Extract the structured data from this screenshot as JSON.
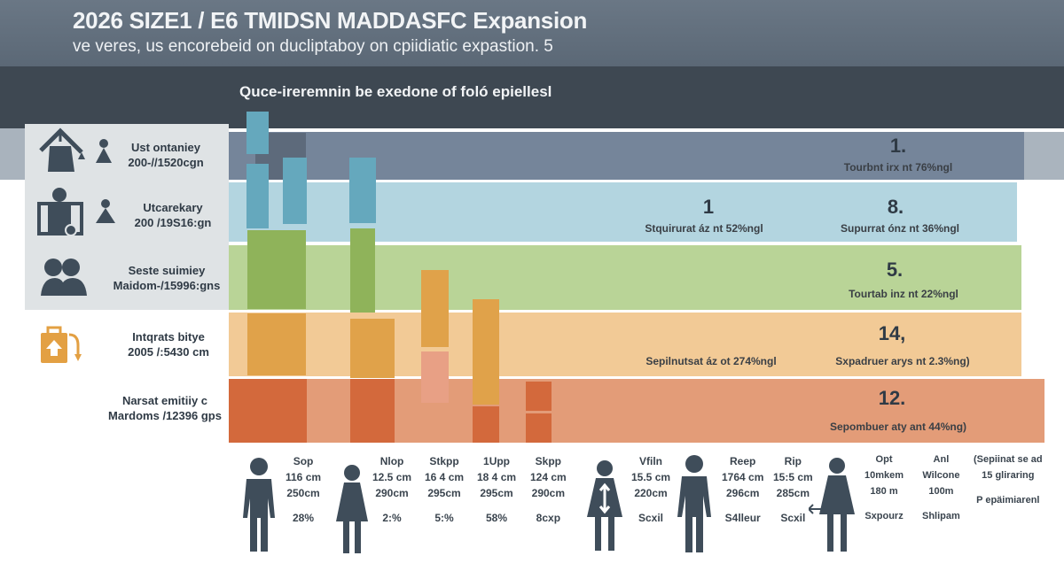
{
  "header": {
    "title": "2026 SIZE1 / E6 TMIDSN MADDASFC Expansion",
    "subtitle": "ve veres, us encorebeid on ducliptaboy on cpiidiatic expastion. 5"
  },
  "section_title": "Quce-ireremnin be exedone of foló epiellesl",
  "colors": {
    "header": "#5f6c7a",
    "band": "#3e4852",
    "row1": "#75859a",
    "row2": "#b3d5e0",
    "row3": "#b9d497",
    "row4": "#f2ca96",
    "row5": "#e39c78",
    "teal": "#65a8bd",
    "green": "#8fb35a",
    "orange": "#e0a24a",
    "red": "#d3693c",
    "icon": "#3f4d5a"
  },
  "categories": [
    {
      "icon": "building-crane-icon",
      "name": "Ust ontaniey",
      "detail": "200-//1520cgn"
    },
    {
      "icon": "businessman-icon",
      "name": "Utcarekary",
      "detail": "200 /19S16:gn"
    },
    {
      "icon": "two-people-icon",
      "name": "Seste suimiey",
      "detail": "Maidom-/15996:gns"
    },
    {
      "icon": "luggage-icon",
      "name": "Intqrats bitye",
      "detail": "2005 /:5430 cm"
    },
    {
      "icon": "",
      "name": "Narsat emitiiy c",
      "detail": "Mardoms /12396 gps"
    }
  ],
  "rows": [
    {
      "left": null,
      "right": {
        "value": "1.",
        "caption": "Tourbnt irx nt 76%ngl"
      }
    },
    {
      "left": {
        "value": "1",
        "caption": "Stquirurat áz nt 52%ngl"
      },
      "right": {
        "value": "8.",
        "caption": "Supurrat ónz nt 36%ngl"
      }
    },
    {
      "left": null,
      "right": {
        "value": "5.",
        "caption": "Tourtab inz nt 22%ngl"
      }
    },
    {
      "left": {
        "value": "",
        "caption": "Sepilnutsat áz ot 274%ngl"
      },
      "right": {
        "value": "14,",
        "caption": "Sxpadruer arys nt 2.3%ng)"
      }
    },
    {
      "left": null,
      "right": {
        "value": "12.",
        "caption": "Sepombuer aty ant 44%ng)"
      }
    }
  ],
  "people": [
    {
      "icon": "man-icon"
    },
    {
      "icon": "woman-icon"
    },
    {
      "icon": "woman-height-arrow-icon"
    },
    {
      "icon": "man-icon"
    },
    {
      "icon": "woman-arrow-icon"
    }
  ],
  "columns": [
    {
      "name": "Sop",
      "a": "116 cm",
      "b": "250cm",
      "c": "28%"
    },
    {
      "name": "Nlop",
      "a": "12.5 cm",
      "b": "290cm",
      "c": "2:%"
    },
    {
      "name": "Stkpp",
      "a": "16 4 cm",
      "b": "295cm",
      "c": "5:%"
    },
    {
      "name": "1Upp",
      "a": "18 4 cm",
      "b": "295cm",
      "c": "58%"
    },
    {
      "name": "Skpp",
      "a": "124 cm",
      "b": "290cm",
      "c": "8cxp"
    },
    {
      "name": "Vfiln",
      "a": "15.5 cm",
      "b": "220cm",
      "c": "Scxil"
    },
    {
      "name": "Reep",
      "a": "1764 cm",
      "b": "296cm",
      "c": "S4lleur"
    },
    {
      "name": "Rip",
      "a": "15:5 cm",
      "b": "285cm",
      "c": "Scxil"
    },
    {
      "name": "Opt",
      "a": "10mkem",
      "b": "180 m",
      "c": "Sxpourz"
    },
    {
      "name": "Anl",
      "a": "Wilcone",
      "b": "100m",
      "c": "Shlipam"
    },
    {
      "name": "",
      "a": "(Sepiinat se ad",
      "b": "15 gliraring",
      "c": "P epäimiarenl"
    }
  ]
}
